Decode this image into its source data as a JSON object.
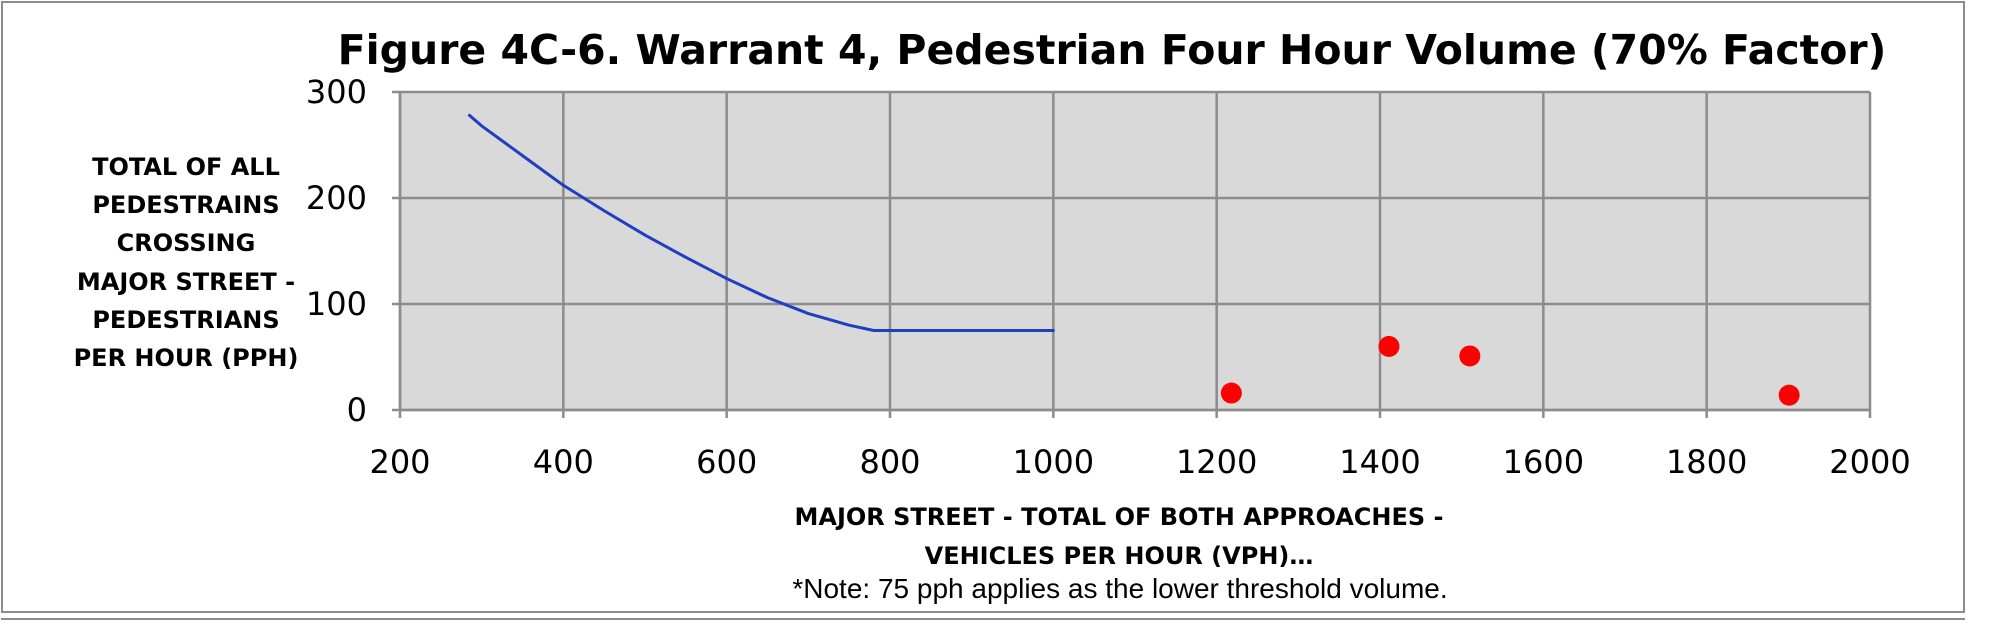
{
  "chart_data": {
    "type": "scatter",
    "title": "Figure 4C-6. Warrant 4, Pedestrian Four Hour Volume (70% Factor)",
    "xlabel_lines": [
      "MAJOR STREET - TOTAL OF BOTH APPROACHES -",
      "VEHICLES PER HOUR (VPH)…"
    ],
    "ylabel_lines": [
      "TOTAL OF ALL",
      "PEDESTRAINS",
      "CROSSING",
      "MAJOR STREET -",
      "PEDESTRIANS",
      "PER HOUR (PPH)"
    ],
    "note": "*Note: 75 pph applies as the lower threshold volume.",
    "xlim": [
      200,
      2000
    ],
    "ylim": [
      0,
      300
    ],
    "x_ticks": [
      200,
      400,
      600,
      800,
      1000,
      1200,
      1400,
      1600,
      1800,
      2000
    ],
    "y_ticks": [
      0,
      100,
      200,
      300
    ],
    "grid": true,
    "background_color": "#d9d9d9",
    "grid_color": "#8c8c8c",
    "series": [
      {
        "style": "line",
        "color": "#1f3fbf",
        "x": [
          285,
          300,
          350,
          400,
          450,
          500,
          550,
          600,
          650,
          700,
          750,
          780,
          800,
          1000
        ],
        "y": [
          278,
          268,
          240,
          212,
          188,
          165,
          144,
          124,
          106,
          91,
          80,
          75,
          75,
          75
        ]
      },
      {
        "style": "points",
        "color": "#ff0000",
        "x": [
          1218,
          1411,
          1510,
          1901
        ],
        "y": [
          16,
          60,
          51,
          14
        ]
      }
    ]
  }
}
